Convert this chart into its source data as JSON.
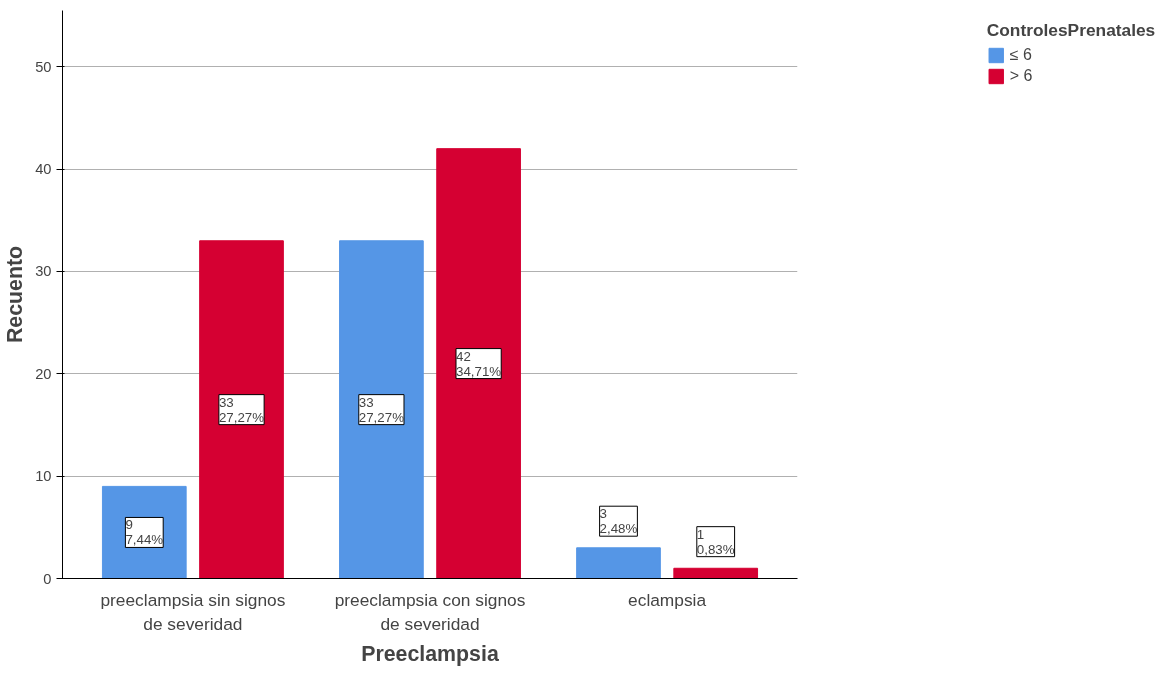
{
  "chart_data": {
    "type": "bar",
    "xlabel": "Preeclampsia",
    "ylabel": "Recuento",
    "legend_title": "ControlesPrenatales",
    "categories": [
      "preeclampsia sin signos de severidad",
      "preeclampsia con signos de severidad",
      "eclampsia"
    ],
    "series": [
      {
        "name": "≤ 6",
        "color": "#5596e6",
        "values": [
          9,
          33,
          3
        ],
        "value_labels": [
          "9\n7,44%",
          "33\n27,27%",
          "3\n2,48%"
        ]
      },
      {
        "name": "> 6",
        "color": "#d50032",
        "values": [
          33,
          42,
          1
        ],
        "value_labels": [
          "33\n27,27%",
          "42\n34,71%",
          "1\n0,83%"
        ]
      }
    ],
    "ylim": [
      0,
      55.5
    ],
    "yticks": [
      0,
      10,
      20,
      30,
      40,
      50
    ],
    "grid": "y",
    "legend": "top right"
  }
}
